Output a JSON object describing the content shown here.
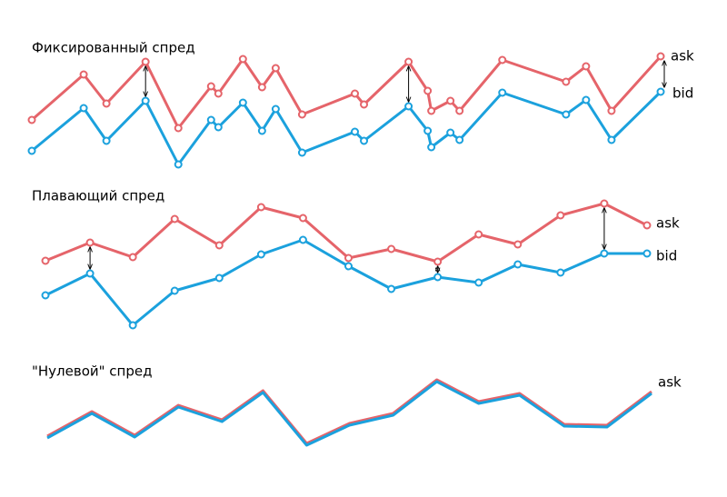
{
  "chart_data": [
    {
      "type": "line",
      "title": "Фиксированный спред",
      "markers": true,
      "x": [
        35,
        92,
        117,
        160,
        196,
        232,
        240,
        267,
        288,
        303,
        332,
        390,
        400,
        449,
        470,
        474,
        495,
        505,
        552,
        622,
        644,
        672,
        726
      ],
      "series": [
        {
          "name": "ask",
          "color": "#e5646a",
          "values": [
            68,
            118,
            86,
            132,
            59,
            105,
            97,
            135,
            104,
            125,
            74,
            97,
            85,
            132,
            100,
            78,
            89,
            78,
            134,
            110,
            127,
            78,
            138
          ]
        },
        {
          "name": "bid",
          "color": "#1ba1dd",
          "values": [
            34,
            81,
            45,
            89,
            19,
            68,
            60,
            87,
            56,
            80,
            32,
            55,
            45,
            83,
            56,
            38,
            54,
            46,
            98,
            74,
            90,
            46,
            99
          ]
        }
      ]
    },
    {
      "type": "line",
      "title": "Плавающий спред",
      "markers": true,
      "x": [
        50,
        99,
        146,
        192,
        241,
        287,
        333,
        383,
        430,
        481,
        526,
        569,
        616,
        664,
        711
      ],
      "series": [
        {
          "name": "ask",
          "color": "#e5646a",
          "values": [
            113,
            133,
            117,
            159,
            130,
            172,
            160,
            116,
            126,
            112,
            142,
            131,
            163,
            176,
            152
          ]
        },
        {
          "name": "bid",
          "color": "#1ba1dd",
          "values": [
            75,
            99,
            42,
            80,
            94,
            120,
            136,
            107,
            82,
            95,
            89,
            109,
            100,
            121,
            121
          ]
        }
      ]
    },
    {
      "type": "line",
      "title": "\"Нулевой\" спред",
      "markers": false,
      "x": [
        52,
        101,
        148,
        196,
        244,
        289,
        337,
        384,
        432,
        480,
        526,
        571,
        620,
        667,
        716
      ],
      "series": [
        {
          "name": "ask",
          "color": "#e5646a",
          "values": [
            20,
            47,
            21,
            54,
            38,
            70,
            12,
            34,
            45,
            82,
            58,
            67,
            33,
            32,
            69
          ]
        },
        {
          "color": "#1ba1dd",
          "values": [
            18,
            45,
            19,
            52,
            36,
            68,
            10,
            32,
            43,
            80,
            56,
            65,
            31,
            30,
            67
          ]
        }
      ]
    }
  ]
}
